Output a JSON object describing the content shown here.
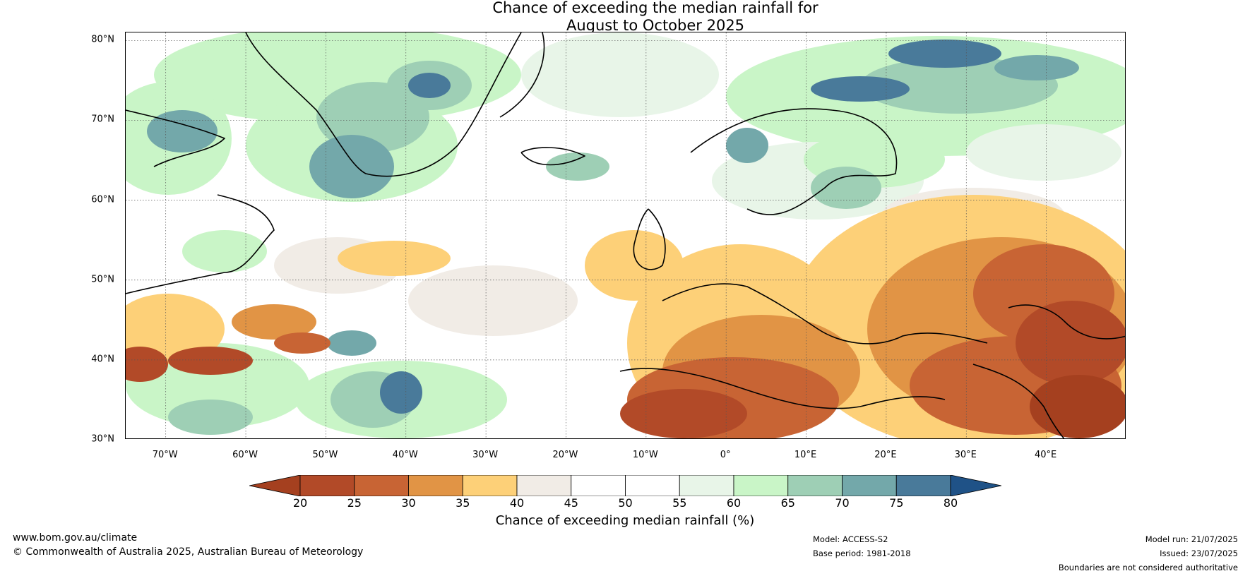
{
  "title_line1": "Chance of exceeding the median rainfall for",
  "title_line2": "August to October 2025",
  "lat_ticks": [
    "80°N",
    "70°N",
    "60°N",
    "50°N",
    "40°N",
    "30°N"
  ],
  "lon_ticks": [
    "70°W",
    "60°W",
    "50°W",
    "40°W",
    "30°W",
    "20°W",
    "10°W",
    "0°",
    "10°E",
    "20°E",
    "30°E",
    "40°E"
  ],
  "map_extent": {
    "lon_min": -75,
    "lon_max": 50,
    "lat_min": 30,
    "lat_max": 81
  },
  "colorbar": {
    "ticks": [
      "20",
      "25",
      "30",
      "35",
      "40",
      "45",
      "50",
      "55",
      "60",
      "65",
      "70",
      "75",
      "80"
    ],
    "colors": [
      "#a5401f",
      "#b24a28",
      "#c86434",
      "#e19445",
      "#fdd078",
      "#f1ece6",
      "#ffffff",
      "#ffffff",
      "#e8f5e8",
      "#c9f5c7",
      "#9ecfb5",
      "#73a8aa",
      "#497a9a",
      "#1f5287"
    ],
    "label": "Chance of exceeding median rainfall (%)"
  },
  "footer": {
    "website": "www.bom.gov.au/climate",
    "copyright": "© Commonwealth of Australia 2025, Australian Bureau of Meteorology",
    "model": "Model: ACCESS-S2",
    "base_period": "Base period: 1981-2018",
    "model_run": "Model run: 21/07/2025",
    "issued": "Issued: 23/07/2025",
    "disclaimer": "Boundaries are not considered authoritative"
  }
}
